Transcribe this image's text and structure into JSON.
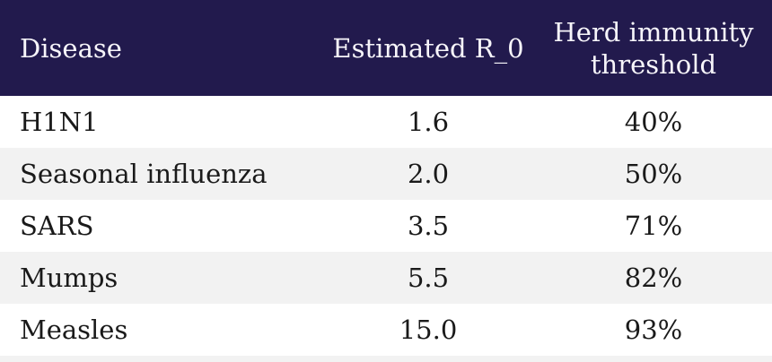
{
  "chart_data": {
    "type": "table",
    "columns": [
      "Disease",
      "Estimated R_0",
      "Herd immunity threshold"
    ],
    "rows": [
      [
        "H1N1",
        "1.6",
        "40%"
      ],
      [
        "Seasonal influenza",
        "2.0",
        "50%"
      ],
      [
        "SARS",
        "3.5",
        "71%"
      ],
      [
        "Mumps",
        "5.5",
        "82%"
      ],
      [
        "Measles",
        "15.0",
        "93%"
      ]
    ],
    "r0_values": [
      1.6,
      2.0,
      3.5,
      5.5,
      15.0
    ],
    "herd_immunity_threshold_pct": [
      40,
      50,
      71,
      82,
      93
    ],
    "layout": {
      "header_rows": 1,
      "zebra_striping": true,
      "numeric_columns_alignment": "center",
      "disease_column_alignment": "left"
    }
  },
  "colors": {
    "header-bg": "#221a4d",
    "header-text": "#f7f5fa",
    "row-bg": "#ffffff",
    "row-alt-bg": "#f2f2f2",
    "body-text": "#1a1a1a"
  }
}
